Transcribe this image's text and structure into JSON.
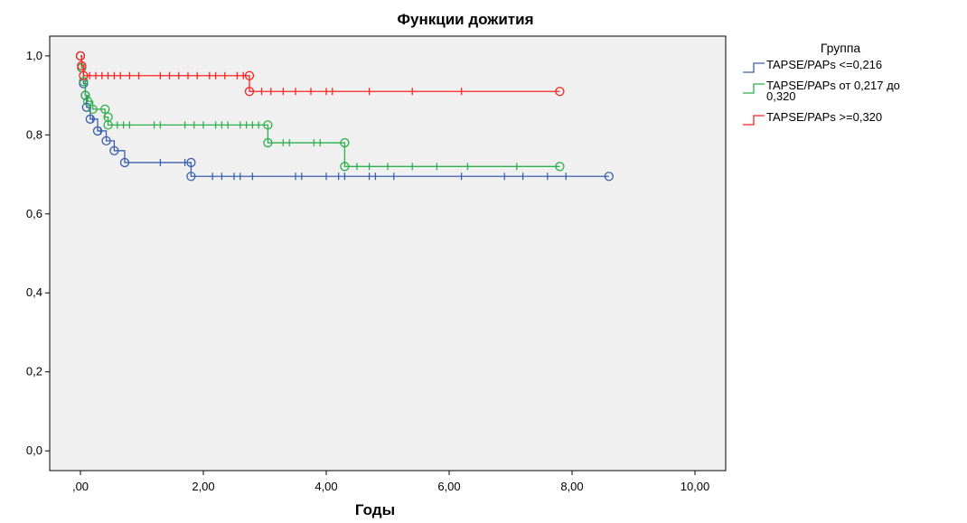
{
  "chart_data": {
    "type": "line",
    "subtype": "kaplan-meier step",
    "title": "Функции дожития",
    "xlabel": "Годы",
    "ylabel": "",
    "xlim": [
      -0.5,
      10.5
    ],
    "ylim": [
      -0.05,
      1.05
    ],
    "x_ticks": [
      0,
      2,
      4,
      6,
      8,
      10
    ],
    "x_tick_labels": [
      ",00",
      "2,00",
      "4,00",
      "6,00",
      "8,00",
      "10,00"
    ],
    "y_ticks": [
      0,
      0.2,
      0.4,
      0.6,
      0.8,
      1.0
    ],
    "y_tick_labels": [
      "0,0",
      "0,2",
      "0,4",
      "0,6",
      "0,8",
      "1,0"
    ],
    "grid": false,
    "plot_background": "#f0f0f0",
    "legend_position": "right",
    "legend_title": "Группа",
    "series": [
      {
        "name": "TAPSE/PAPs <=0,216",
        "color": "#3a5fad",
        "steps": [
          [
            0,
            1.0
          ],
          [
            0.02,
            0.97
          ],
          [
            0.05,
            0.93
          ],
          [
            0.08,
            0.9
          ],
          [
            0.1,
            0.87
          ],
          [
            0.16,
            0.84
          ],
          [
            0.28,
            0.81
          ],
          [
            0.42,
            0.785
          ],
          [
            0.55,
            0.76
          ],
          [
            0.72,
            0.73
          ],
          [
            1.8,
            0.695
          ],
          [
            8.6,
            0.695
          ]
        ],
        "censored": [
          [
            0.2,
            0.84
          ],
          [
            0.33,
            0.81
          ],
          [
            1.3,
            0.73
          ],
          [
            1.7,
            0.73
          ],
          [
            2.15,
            0.695
          ],
          [
            2.3,
            0.695
          ],
          [
            2.5,
            0.695
          ],
          [
            2.6,
            0.695
          ],
          [
            2.8,
            0.695
          ],
          [
            3.5,
            0.695
          ],
          [
            3.6,
            0.695
          ],
          [
            4.0,
            0.695
          ],
          [
            4.2,
            0.695
          ],
          [
            4.3,
            0.695
          ],
          [
            4.7,
            0.695
          ],
          [
            4.8,
            0.695
          ],
          [
            5.1,
            0.695
          ],
          [
            6.2,
            0.695
          ],
          [
            6.9,
            0.695
          ],
          [
            7.2,
            0.695
          ],
          [
            7.6,
            0.695
          ],
          [
            7.9,
            0.695
          ]
        ],
        "circles": [
          [
            0,
            1.0
          ],
          [
            0.02,
            0.97
          ],
          [
            0.05,
            0.93
          ],
          [
            0.08,
            0.9
          ],
          [
            0.1,
            0.87
          ],
          [
            0.16,
            0.84
          ],
          [
            0.28,
            0.81
          ],
          [
            0.42,
            0.785
          ],
          [
            0.55,
            0.76
          ],
          [
            0.72,
            0.73
          ],
          [
            1.8,
            0.73
          ],
          [
            1.8,
            0.695
          ],
          [
            8.6,
            0.695
          ]
        ]
      },
      {
        "name": "TAPSE/PAPs от 0,217 до 0,320",
        "color": "#2bb04a",
        "steps": [
          [
            0,
            1.0
          ],
          [
            0.02,
            0.97
          ],
          [
            0.05,
            0.935
          ],
          [
            0.08,
            0.9
          ],
          [
            0.12,
            0.885
          ],
          [
            0.2,
            0.865
          ],
          [
            0.4,
            0.845
          ],
          [
            0.45,
            0.825
          ],
          [
            3.05,
            0.78
          ],
          [
            4.3,
            0.72
          ],
          [
            7.8,
            0.72
          ]
        ],
        "censored": [
          [
            0.6,
            0.825
          ],
          [
            0.7,
            0.825
          ],
          [
            0.8,
            0.825
          ],
          [
            1.2,
            0.825
          ],
          [
            1.3,
            0.825
          ],
          [
            1.7,
            0.825
          ],
          [
            1.85,
            0.825
          ],
          [
            2.0,
            0.825
          ],
          [
            2.2,
            0.825
          ],
          [
            2.3,
            0.825
          ],
          [
            2.4,
            0.825
          ],
          [
            2.6,
            0.825
          ],
          [
            2.7,
            0.825
          ],
          [
            2.8,
            0.825
          ],
          [
            2.9,
            0.825
          ],
          [
            3.3,
            0.78
          ],
          [
            3.4,
            0.78
          ],
          [
            3.8,
            0.78
          ],
          [
            3.9,
            0.78
          ],
          [
            4.5,
            0.72
          ],
          [
            4.7,
            0.72
          ],
          [
            5.0,
            0.72
          ],
          [
            5.4,
            0.72
          ],
          [
            5.8,
            0.72
          ],
          [
            6.3,
            0.72
          ],
          [
            7.1,
            0.72
          ]
        ],
        "circles": [
          [
            0,
            1.0
          ],
          [
            0.02,
            0.97
          ],
          [
            0.05,
            0.935
          ],
          [
            0.08,
            0.9
          ],
          [
            0.12,
            0.885
          ],
          [
            0.2,
            0.865
          ],
          [
            0.4,
            0.865
          ],
          [
            0.45,
            0.845
          ],
          [
            0.45,
            0.825
          ],
          [
            3.05,
            0.825
          ],
          [
            3.05,
            0.78
          ],
          [
            4.3,
            0.78
          ],
          [
            4.3,
            0.72
          ],
          [
            7.8,
            0.72
          ]
        ]
      },
      {
        "name": "TAPSE/PAPs >=0,320",
        "color": "#ff2020",
        "steps": [
          [
            0,
            1.0
          ],
          [
            0.02,
            0.975
          ],
          [
            0.05,
            0.95
          ],
          [
            2.75,
            0.91
          ],
          [
            7.8,
            0.91
          ]
        ],
        "censored": [
          [
            0.15,
            0.95
          ],
          [
            0.25,
            0.95
          ],
          [
            0.35,
            0.95
          ],
          [
            0.45,
            0.95
          ],
          [
            0.55,
            0.95
          ],
          [
            0.65,
            0.95
          ],
          [
            0.8,
            0.95
          ],
          [
            0.95,
            0.95
          ],
          [
            1.3,
            0.95
          ],
          [
            1.45,
            0.95
          ],
          [
            1.6,
            0.95
          ],
          [
            1.75,
            0.95
          ],
          [
            1.9,
            0.95
          ],
          [
            2.1,
            0.95
          ],
          [
            2.2,
            0.95
          ],
          [
            2.35,
            0.95
          ],
          [
            2.55,
            0.95
          ],
          [
            2.65,
            0.95
          ],
          [
            2.95,
            0.91
          ],
          [
            3.1,
            0.91
          ],
          [
            3.3,
            0.91
          ],
          [
            3.5,
            0.91
          ],
          [
            3.75,
            0.91
          ],
          [
            4.0,
            0.91
          ],
          [
            4.1,
            0.91
          ],
          [
            4.7,
            0.91
          ],
          [
            5.4,
            0.91
          ],
          [
            6.2,
            0.91
          ]
        ],
        "circles": [
          [
            0,
            1.0
          ],
          [
            0.02,
            0.975
          ],
          [
            0.05,
            0.95
          ],
          [
            2.75,
            0.95
          ],
          [
            2.75,
            0.91
          ],
          [
            7.8,
            0.91
          ]
        ]
      }
    ],
    "legend_entries": [
      {
        "lines": [
          "TAPSE/PAPs <=0,216"
        ],
        "color": "#3a5fad"
      },
      {
        "lines": [
          "TAPSE/PAPs от 0,217 до",
          "0,320"
        ],
        "color": "#2bb04a"
      },
      {
        "lines": [
          "TAPSE/PAPs >=0,320"
        ],
        "color": "#ff2020"
      }
    ]
  }
}
